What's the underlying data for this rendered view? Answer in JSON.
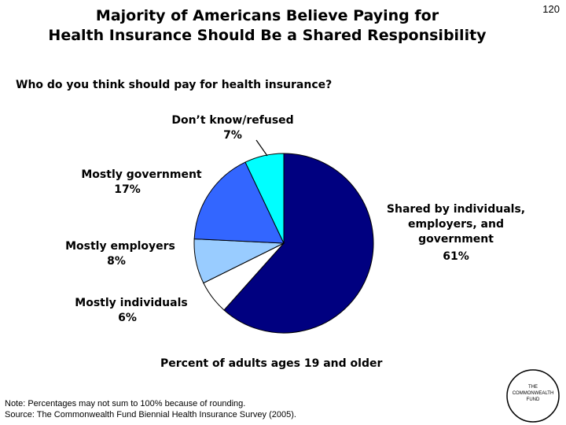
{
  "page_number": "120",
  "title_line1": "Majority of Americans Believe Paying for",
  "title_line2": "Health Insurance Should Be a Shared Responsibility",
  "question": "Who do you think should pay for health insurance?",
  "subtitle": "Percent of adults ages 19 and older",
  "note": "Note: Percentages may not sum to 100% because of rounding.",
  "source": "Source: The Commonwealth Fund Biennial Health Insurance Survey (2005).",
  "logo": {
    "line1": "THE",
    "line2": "COMMONWEALTH",
    "line3": "FUND"
  },
  "chart_data": {
    "type": "pie",
    "title": "Who do you think should pay for health insurance?",
    "slices": [
      {
        "label": "Shared by individuals, employers, and government",
        "value": 61,
        "value_label": "61%",
        "color": "#000080"
      },
      {
        "label": "Mostly individuals",
        "value": 6,
        "value_label": "6%",
        "color": "#ffffff"
      },
      {
        "label": "Mostly employers",
        "value": 8,
        "value_label": "8%",
        "color": "#99ccff"
      },
      {
        "label": "Mostly government",
        "value": 17,
        "value_label": "17%",
        "color": "#3366ff"
      },
      {
        "label": "Don’t know/refused",
        "value": 7,
        "value_label": "7%",
        "color": "#00ffff"
      }
    ]
  }
}
